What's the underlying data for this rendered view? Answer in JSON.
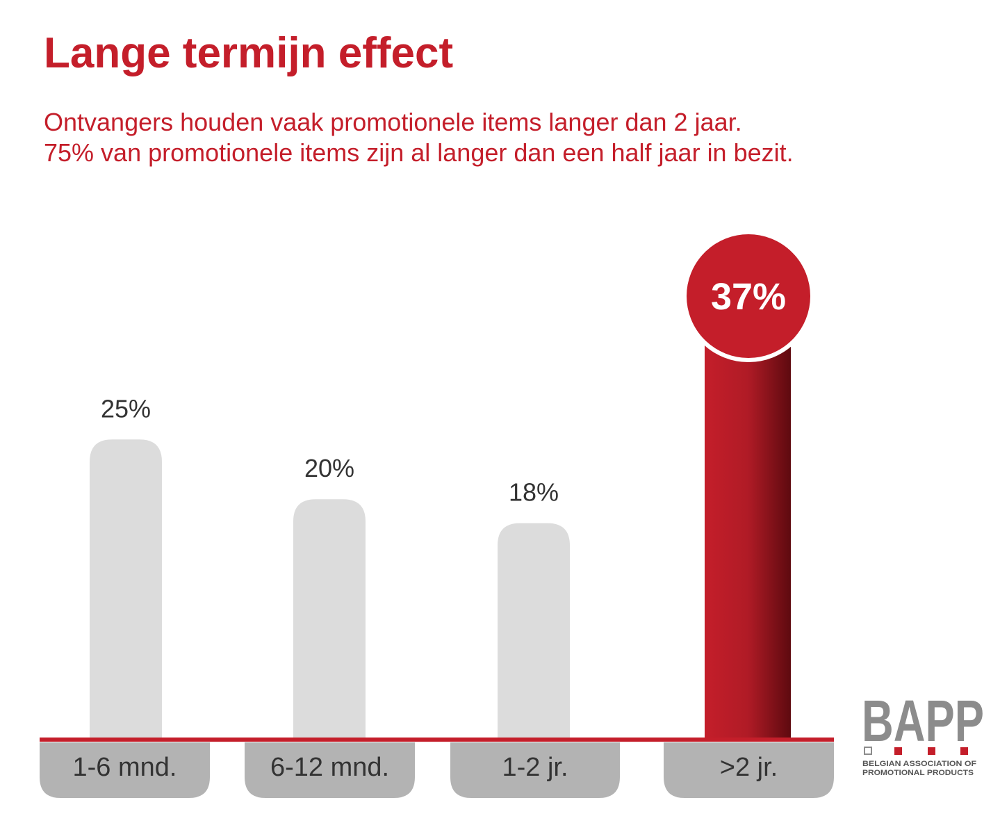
{
  "chart_data": {
    "type": "bar",
    "title": "Lange termijn effect",
    "subtitle": [
      "Ontvangers houden vaak promotionele items langer dan 2 jaar.",
      "75% van promotionele items zijn al langer dan een half jaar in bezit."
    ],
    "categories": [
      "1-6 mnd.",
      "6-12 mnd.",
      "1-2 jr.",
      ">2 jr."
    ],
    "values": [
      25,
      20,
      18,
      37
    ],
    "value_labels": [
      "25%",
      "20%",
      "18%",
      "37%"
    ],
    "colors": [
      "#dcdcdc",
      "#dcdcdc",
      "#dcdcdc",
      "#c41e2a"
    ]
  },
  "logo": {
    "name": "BAPP",
    "tagline": [
      "BELGIAN ASSOCIATION OF",
      "PROMOTIONAL PRODUCTS"
    ]
  }
}
